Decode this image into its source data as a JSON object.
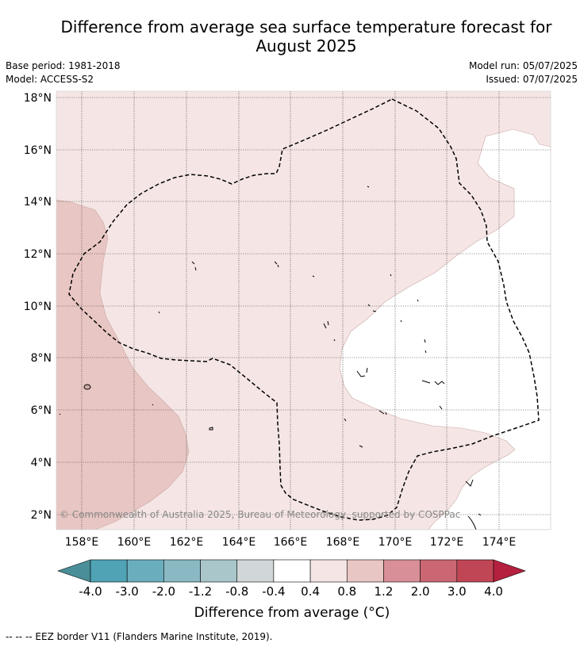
{
  "title": {
    "line1": "Difference from average sea surface temperature forecast for",
    "line2": "August 2025"
  },
  "meta": {
    "base_period": "Base period: 1981-2018",
    "model": "Model: ACCESS-S2",
    "model_run": "Model run: 05/07/2025",
    "issued": "Issued: 07/07/2025"
  },
  "map": {
    "lat_labels": [
      "18°N",
      "16°N",
      "14°N",
      "12°N",
      "10°N",
      "8°N",
      "6°N",
      "4°N",
      "2°N"
    ],
    "lon_labels": [
      "158°E",
      "160°E",
      "162°E",
      "164°E",
      "166°E",
      "168°E",
      "170°E",
      "172°E",
      "174°E"
    ],
    "copyright": "© Commonwealth of Australia 2025, Bureau of Meteorology, supported by COSPPac",
    "fill_colors": {
      "light_positive": "#f5e6e5",
      "mid_positive": "#e8c6c3",
      "neutral": "#ffffff"
    }
  },
  "colorbar": {
    "label": "Difference from average (°C)",
    "ticks": [
      "-4.0",
      "-3.0",
      "-2.0",
      "-1.2",
      "-0.8",
      "-0.4",
      "0.4",
      "0.8",
      "1.2",
      "2.0",
      "3.0",
      "4.0"
    ],
    "colors": [
      "#4a8e99",
      "#4fa3b5",
      "#6aaebd",
      "#8ab9c4",
      "#a9c6cb",
      "#d1d6d8",
      "#ffffff",
      "#f5e6e5",
      "#e8c6c3",
      "#d98f97",
      "#cb6673",
      "#c04656",
      "#b5203e"
    ]
  },
  "footer": "-- -- -- EEZ border V11 (Flanders Marine Institute, 2019)."
}
